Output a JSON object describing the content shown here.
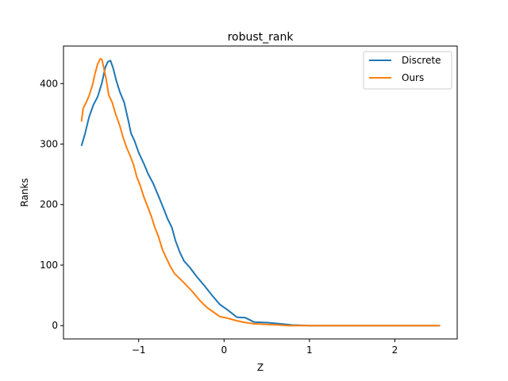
{
  "chart_data": {
    "type": "line",
    "title": "robust_rank",
    "xlabel": "Z",
    "ylabel": "Ranks",
    "xlim": [
      -1.88,
      2.73
    ],
    "ylim": [
      -22,
      462
    ],
    "xticks": [
      -1,
      0,
      1,
      2
    ],
    "xtick_labels": [
      "−1",
      "0",
      "1",
      "2"
    ],
    "yticks": [
      0,
      100,
      200,
      300,
      400
    ],
    "ytick_labels": [
      "0",
      "100",
      "200",
      "300",
      "400"
    ],
    "grid": false,
    "legend_position": "top-right",
    "series": [
      {
        "name": "Discrete",
        "color": "#1f77b4",
        "x": [
          -1.67,
          -1.63,
          -1.58,
          -1.53,
          -1.48,
          -1.43,
          -1.39,
          -1.36,
          -1.33,
          -1.3,
          -1.26,
          -1.22,
          -1.17,
          -1.12,
          -1.09,
          -1.05,
          -1.0,
          -0.94,
          -0.89,
          -0.83,
          -0.77,
          -0.71,
          -0.66,
          -0.61,
          -0.57,
          -0.52,
          -0.47,
          -0.4,
          -0.32,
          -0.23,
          -0.14,
          -0.05,
          0.05,
          0.15,
          0.25,
          0.35,
          0.5,
          0.65,
          0.8,
          1.0,
          1.5,
          2.0,
          2.53
        ],
        "y": [
          297,
          316,
          345,
          365,
          378,
          401,
          427,
          436,
          438,
          426,
          404,
          386,
          369,
          338,
          318,
          306,
          286,
          268,
          251,
          235,
          215,
          194,
          176,
          162,
          141,
          122,
          107,
          96,
          81,
          66,
          50,
          35,
          25,
          14,
          13,
          6,
          5,
          3,
          1,
          0,
          0,
          0,
          0
        ]
      },
      {
        "name": "Ours",
        "color": "#ff7f0e",
        "x": [
          -1.67,
          -1.65,
          -1.62,
          -1.58,
          -1.54,
          -1.51,
          -1.48,
          -1.45,
          -1.43,
          -1.41,
          -1.38,
          -1.35,
          -1.31,
          -1.27,
          -1.22,
          -1.18,
          -1.14,
          -1.1,
          -1.06,
          -1.02,
          -0.98,
          -0.94,
          -0.89,
          -0.85,
          -0.81,
          -0.77,
          -0.72,
          -0.67,
          -0.63,
          -0.58,
          -0.52,
          -0.45,
          -0.37,
          -0.28,
          -0.2,
          -0.12,
          -0.05,
          0.05,
          0.15,
          0.25,
          0.35,
          0.5,
          0.65,
          0.75,
          1.0,
          1.5,
          2.0,
          2.53
        ],
        "y": [
          337,
          359,
          367,
          380,
          398,
          417,
          432,
          441,
          440,
          427,
          407,
          381,
          369,
          350,
          330,
          310,
          294,
          281,
          266,
          245,
          231,
          213,
          195,
          180,
          162,
          148,
          125,
          110,
          98,
          86,
          78,
          68,
          56,
          41,
          30,
          22,
          15,
          12,
          8,
          5,
          3,
          2,
          1,
          0,
          0,
          0,
          0,
          0
        ]
      }
    ]
  }
}
